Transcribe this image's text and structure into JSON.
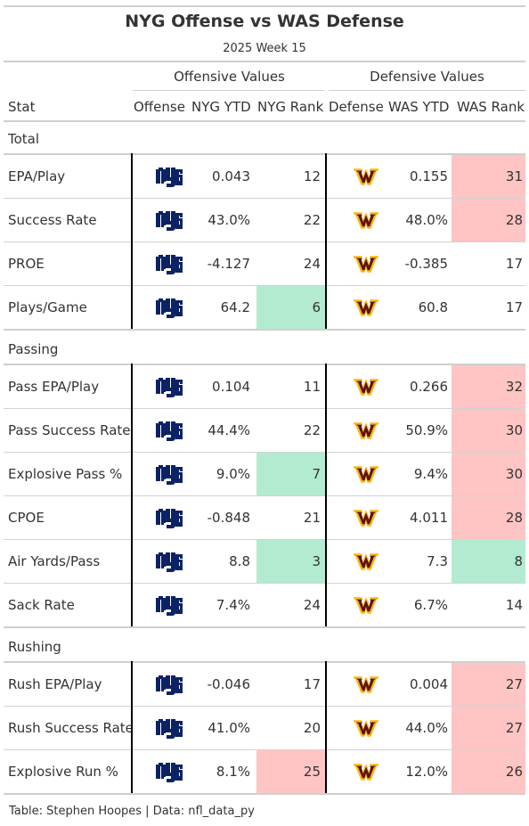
{
  "title": "NYG Offense vs WAS Defense",
  "subtitle": "2025 Week 15",
  "spanners": {
    "offense": "Offensive Values",
    "defense": "Defensive Values"
  },
  "columns": [
    "Stat",
    "Offense",
    "NYG YTD",
    "NYG Rank",
    "Defense",
    "WAS YTD",
    "WAS Rank"
  ],
  "colors": {
    "good_rank": "#b3ebd0",
    "bad_rank": "#ffc4c4",
    "nyg_logo": "#0b2265",
    "was_logo": "#5a1414",
    "was_gold": "#ffb612"
  },
  "footer": "Table: Stephen Hoopes | Data: nfl_data_py",
  "chart_data": {
    "type": "table",
    "title": "NYG Offense vs WAS Defense",
    "subtitle": "2025 Week 15",
    "groups": [
      {
        "name": "Total",
        "rows": [
          {
            "stat": "EPA/Play",
            "off_logo": "nyg-logo-icon",
            "nyg_ytd": "0.043",
            "nyg_rank": 12,
            "nyg_hl": "",
            "def_logo": "was-logo-icon",
            "was_ytd": "0.155",
            "was_rank": 31,
            "was_hl": "bad"
          },
          {
            "stat": "Success Rate",
            "off_logo": "nyg-logo-icon",
            "nyg_ytd": "43.0%",
            "nyg_rank": 22,
            "nyg_hl": "",
            "def_logo": "was-logo-icon",
            "was_ytd": "48.0%",
            "was_rank": 28,
            "was_hl": "bad"
          },
          {
            "stat": "PROE",
            "off_logo": "nyg-logo-icon",
            "nyg_ytd": "-4.127",
            "nyg_rank": 24,
            "nyg_hl": "",
            "def_logo": "was-logo-icon",
            "was_ytd": "-0.385",
            "was_rank": 17,
            "was_hl": ""
          },
          {
            "stat": "Plays/Game",
            "off_logo": "nyg-logo-icon",
            "nyg_ytd": "64.2",
            "nyg_rank": 6,
            "nyg_hl": "good",
            "def_logo": "was-logo-icon",
            "was_ytd": "60.8",
            "was_rank": 17,
            "was_hl": ""
          }
        ]
      },
      {
        "name": "Passing",
        "rows": [
          {
            "stat": "Pass EPA/Play",
            "off_logo": "nyg-logo-icon",
            "nyg_ytd": "0.104",
            "nyg_rank": 11,
            "nyg_hl": "",
            "def_logo": "was-logo-icon",
            "was_ytd": "0.266",
            "was_rank": 32,
            "was_hl": "bad"
          },
          {
            "stat": "Pass Success Rate",
            "off_logo": "nyg-logo-icon",
            "nyg_ytd": "44.4%",
            "nyg_rank": 22,
            "nyg_hl": "",
            "def_logo": "was-logo-icon",
            "was_ytd": "50.9%",
            "was_rank": 30,
            "was_hl": "bad"
          },
          {
            "stat": "Explosive Pass %",
            "off_logo": "nyg-logo-icon",
            "nyg_ytd": "9.0%",
            "nyg_rank": 7,
            "nyg_hl": "good",
            "def_logo": "was-logo-icon",
            "was_ytd": "9.4%",
            "was_rank": 30,
            "was_hl": "bad"
          },
          {
            "stat": "CPOE",
            "off_logo": "nyg-logo-icon",
            "nyg_ytd": "-0.848",
            "nyg_rank": 21,
            "nyg_hl": "",
            "def_logo": "was-logo-icon",
            "was_ytd": "4.011",
            "was_rank": 28,
            "was_hl": "bad"
          },
          {
            "stat": "Air Yards/Pass",
            "off_logo": "nyg-logo-icon",
            "nyg_ytd": "8.8",
            "nyg_rank": 3,
            "nyg_hl": "good",
            "def_logo": "was-logo-icon",
            "was_ytd": "7.3",
            "was_rank": 8,
            "was_hl": "good"
          },
          {
            "stat": "Sack Rate",
            "off_logo": "nyg-logo-icon",
            "nyg_ytd": "7.4%",
            "nyg_rank": 24,
            "nyg_hl": "",
            "def_logo": "was-logo-icon",
            "was_ytd": "6.7%",
            "was_rank": 14,
            "was_hl": ""
          }
        ]
      },
      {
        "name": "Rushing",
        "rows": [
          {
            "stat": "Rush EPA/Play",
            "off_logo": "nyg-logo-icon",
            "nyg_ytd": "-0.046",
            "nyg_rank": 17,
            "nyg_hl": "",
            "def_logo": "was-logo-icon",
            "was_ytd": "0.004",
            "was_rank": 27,
            "was_hl": "bad"
          },
          {
            "stat": "Rush Success Rate",
            "off_logo": "nyg-logo-icon",
            "nyg_ytd": "41.0%",
            "nyg_rank": 20,
            "nyg_hl": "",
            "def_logo": "was-logo-icon",
            "was_ytd": "44.0%",
            "was_rank": 27,
            "was_hl": "bad"
          },
          {
            "stat": "Explosive Run %",
            "off_logo": "nyg-logo-icon",
            "nyg_ytd": "8.1%",
            "nyg_rank": 25,
            "nyg_hl": "bad",
            "def_logo": "was-logo-icon",
            "was_ytd": "12.0%",
            "was_rank": 26,
            "was_hl": "bad"
          }
        ]
      }
    ]
  }
}
